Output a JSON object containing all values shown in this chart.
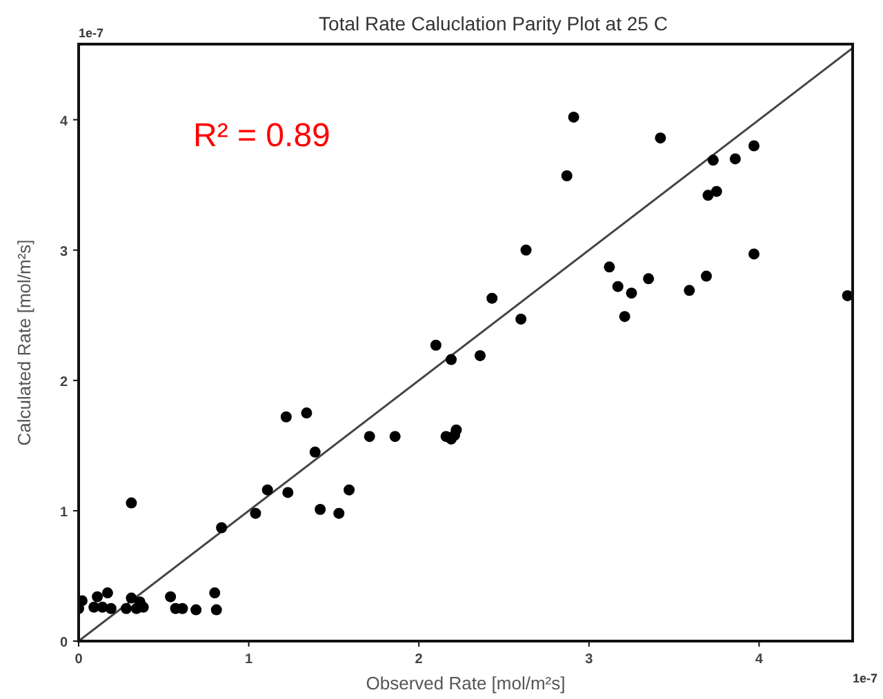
{
  "chart_data": {
    "type": "scatter",
    "title": "Total Rate Caluclation Parity Plot at 25 C",
    "xlabel": "Observed Rate [mol/m²s]",
    "ylabel": "Calculated Rate [mol/m²s]",
    "annotations": [
      "R² = 0.89",
      "1e-7",
      "1e-7"
    ],
    "xlim": [
      0,
      4.55
    ],
    "ylim": [
      0,
      4.58
    ],
    "xticks": [
      0,
      1,
      2,
      3,
      4
    ],
    "yticks": [
      0,
      1,
      2,
      3,
      4
    ],
    "grid": false,
    "series": [
      {
        "type": "line",
        "color": "#444444",
        "marker": "none",
        "x": [
          0,
          4.55
        ],
        "values": [
          0,
          4.55
        ]
      },
      {
        "color": "#000000",
        "marker": "circle",
        "x": [
          0.0,
          0.02,
          0.09,
          0.11,
          0.14,
          0.17,
          0.19,
          0.28,
          0.31,
          0.34,
          0.36,
          0.38,
          0.31,
          0.54,
          0.57,
          0.61,
          0.69,
          0.8,
          0.81,
          0.84,
          1.04,
          1.11,
          1.23,
          1.22,
          1.34,
          1.39,
          1.42,
          1.53,
          1.59,
          1.71,
          1.86,
          2.1,
          2.16,
          2.19,
          2.19,
          2.21,
          2.22,
          2.36,
          2.43,
          2.6,
          2.63,
          2.87,
          2.91,
          3.12,
          3.17,
          3.21,
          3.25,
          3.35,
          3.42,
          3.59,
          3.69,
          3.7,
          3.73,
          3.75,
          3.86,
          3.97,
          3.97,
          4.52
        ],
        "values": [
          0.25,
          0.31,
          0.26,
          0.34,
          0.26,
          0.37,
          0.25,
          0.25,
          0.33,
          0.25,
          0.3,
          0.26,
          1.06,
          0.34,
          0.25,
          0.25,
          0.24,
          0.37,
          0.24,
          0.87,
          0.98,
          1.16,
          1.14,
          1.72,
          1.75,
          1.45,
          1.01,
          0.98,
          1.16,
          1.57,
          1.57,
          2.27,
          1.57,
          1.55,
          2.16,
          1.58,
          1.62,
          2.19,
          2.63,
          2.47,
          3.0,
          3.57,
          4.02,
          2.87,
          2.72,
          2.49,
          2.67,
          2.78,
          3.86,
          2.69,
          2.8,
          3.42,
          3.69,
          3.45,
          3.7,
          3.8,
          2.97,
          2.65
        ]
      }
    ]
  }
}
